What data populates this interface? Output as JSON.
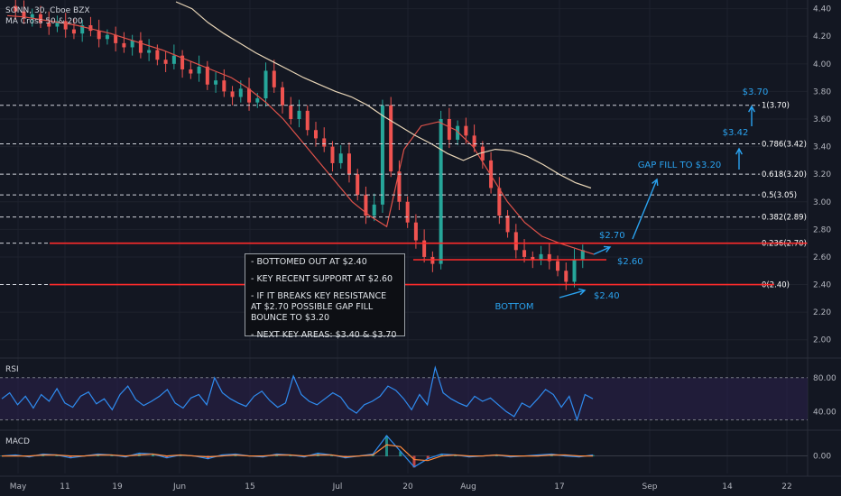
{
  "header": {
    "symbol_line": "SONN, 30, Cboe BZX",
    "indicator_line": "MA Cross 50 & 200"
  },
  "panes": {
    "rsi_label": "RSI",
    "macd_label": "MACD"
  },
  "colors": {
    "background": "#131722",
    "up": "#26a69a",
    "down": "#ef5350",
    "ma50": "#e0524a",
    "ma200": "#e8d5b7",
    "annotation": "#2aa3f0",
    "support": "#ff2b2b",
    "rsi": "#2f8cf0",
    "macd": "#2f8cf0",
    "signal": "#ff8a3d"
  },
  "chart_data": {
    "type": "candlestick",
    "title": "SONN, 30, Cboe BZX",
    "ylim": [
      1.9,
      4.45
    ],
    "x_ticks": [
      "May",
      "11",
      "19",
      "Jun",
      "15",
      "Jul",
      "20",
      "Aug",
      "17",
      "Sep",
      "14",
      "22"
    ],
    "y_ticks": [
      "4.40",
      "4.20",
      "4.00",
      "3.80",
      "3.60",
      "3.40",
      "3.20",
      "3.00",
      "2.80",
      "2.60",
      "2.40",
      "2.20",
      "2.00"
    ],
    "price_path": [
      4.42,
      4.38,
      4.33,
      4.36,
      4.3,
      4.27,
      4.31,
      4.25,
      4.22,
      4.28,
      4.24,
      4.18,
      4.21,
      4.15,
      4.12,
      4.17,
      4.08,
      4.1,
      4.03,
      4.0,
      4.06,
      3.96,
      3.93,
      3.98,
      3.85,
      3.88,
      3.8,
      3.76,
      3.82,
      3.72,
      3.75,
      3.95,
      3.83,
      3.7,
      3.6,
      3.66,
      3.52,
      3.46,
      3.4,
      3.28,
      3.35,
      3.2,
      3.05,
      2.9,
      2.98,
      3.7,
      3.22,
      3.0,
      2.85,
      2.72,
      2.6,
      2.55,
      3.6,
      3.45,
      3.55,
      3.48,
      3.4,
      3.3,
      3.1,
      2.9,
      2.78,
      2.65,
      2.6,
      2.58,
      2.62,
      2.57,
      2.5,
      2.42,
      2.58,
      2.65
    ],
    "moving_averages": [
      {
        "name": "MA 50",
        "values": [
          4.35,
          4.34,
          4.32,
          4.3,
          4.28,
          4.25,
          4.22,
          4.18,
          4.14,
          4.1,
          4.05,
          4.0,
          3.95,
          3.9,
          3.82,
          3.72,
          3.6,
          3.45,
          3.3,
          3.15,
          3.0,
          2.9,
          2.82,
          3.38,
          3.55,
          3.58,
          3.52,
          3.4,
          3.2,
          3.0,
          2.85,
          2.75,
          2.7,
          2.66,
          2.62
        ]
      },
      {
        "name": "MA 200",
        "values": [
          4.45,
          4.4,
          4.3,
          4.22,
          4.15,
          4.08,
          4.02,
          3.96,
          3.9,
          3.85,
          3.8,
          3.76,
          3.7,
          3.62,
          3.55,
          3.48,
          3.42,
          3.35,
          3.3,
          3.35,
          3.38,
          3.37,
          3.33,
          3.27,
          3.2,
          3.14,
          3.1
        ]
      }
    ],
    "fib_levels": [
      {
        "label": "1(3.70)",
        "value": 3.7
      },
      {
        "label": "0.786(3.42)",
        "value": 3.42
      },
      {
        "label": "0.618(3.20)",
        "value": 3.2
      },
      {
        "label": "0.5(3.05)",
        "value": 3.05
      },
      {
        "label": "0.382(2.89)",
        "value": 2.89
      },
      {
        "label": "0.236(2.70)",
        "value": 2.7
      },
      {
        "label": "0(2.40)",
        "value": 2.4
      }
    ],
    "support_lines": [
      {
        "value": 2.7
      },
      {
        "value": 2.58
      },
      {
        "value": 2.4
      }
    ],
    "annotations": [
      {
        "text": "$3.70",
        "value": 3.7
      },
      {
        "text": "$3.42",
        "value": 3.42
      },
      {
        "text": "GAP FILL TO $3.20",
        "value": 3.2
      },
      {
        "text": "$2.70",
        "value": 2.7
      },
      {
        "text": "$2.60",
        "value": 2.6
      },
      {
        "text": "$2.40",
        "value": 2.4
      },
      {
        "text": "BOTTOM",
        "value": 2.4
      }
    ],
    "notes": [
      "- BOTTOMED OUT AT $2.40",
      "- KEY RECENT SUPPORT AT $2.60",
      "- IF IT BREAKS KEY RESISTANCE AT $2.70 POSSIBLE GAP FILL BOUNCE TO $3.20",
      "- NEXT KEY AREAS: $3.40 & $3.70"
    ],
    "rsi": {
      "ticks": [
        "80.00",
        "40.00"
      ],
      "ylim": [
        20,
        100
      ],
      "bands": [
        80,
        30
      ],
      "values": [
        55,
        62,
        48,
        58,
        44,
        60,
        52,
        67,
        50,
        45,
        58,
        63,
        49,
        55,
        42,
        60,
        70,
        54,
        47,
        52,
        58,
        66,
        50,
        44,
        56,
        60,
        48,
        80,
        62,
        55,
        50,
        46,
        58,
        64,
        53,
        45,
        50,
        82,
        60,
        52,
        48,
        55,
        62,
        57,
        44,
        38,
        48,
        52,
        58,
        70,
        65,
        55,
        42,
        60,
        48,
        92,
        62,
        55,
        50,
        46,
        58,
        52,
        56,
        48,
        40,
        34,
        50,
        45,
        55,
        66,
        60,
        45,
        58,
        30,
        60,
        55
      ]
    },
    "macd": {
      "ticks": [
        "0.00"
      ],
      "ylim": [
        -0.2,
        0.25
      ],
      "macd_values": [
        0,
        0.01,
        -0.01,
        0.02,
        0.01,
        -0.02,
        0,
        0.02,
        0.01,
        -0.01,
        0.03,
        0.02,
        -0.02,
        0.01,
        0,
        -0.03,
        0.01,
        0.02,
        0,
        -0.01,
        0.02,
        0.01,
        -0.01,
        0.03,
        0.01,
        -0.02,
        0,
        0.02,
        0.22,
        0.05,
        -0.12,
        -0.03,
        0.02,
        0.01,
        -0.01,
        0,
        0.01,
        -0.01,
        0,
        0.01,
        0.02,
        0,
        -0.01,
        0.01
      ],
      "signal_values": [
        0,
        0,
        0,
        0.01,
        0.01,
        0,
        0,
        0.01,
        0.01,
        0,
        0.01,
        0.02,
        0,
        0.01,
        0,
        -0.01,
        0,
        0.01,
        0,
        0,
        0.01,
        0.01,
        0,
        0.01,
        0.01,
        -0.01,
        0,
        0.01,
        0.12,
        0.1,
        -0.04,
        -0.05,
        0,
        0.01,
        0,
        0,
        0.01,
        0,
        0,
        0,
        0.01,
        0.01,
        0,
        0
      ]
    }
  }
}
